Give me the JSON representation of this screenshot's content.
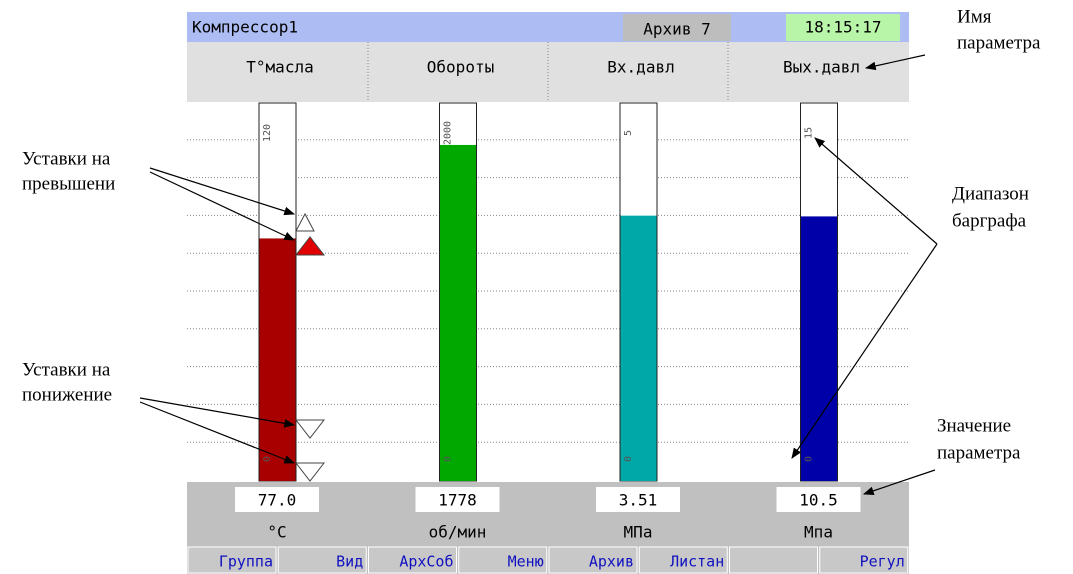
{
  "header": {
    "title": "Компрессор1",
    "archive": "Архив 7",
    "time": "18:15:17"
  },
  "channels": [
    {
      "name": "Т°масла",
      "unit": "°С",
      "value": 77,
      "value_label": "77.0",
      "scale_min": 0,
      "scale_max": 120,
      "color": "#a80000"
    },
    {
      "name": "Обороты",
      "unit": "об/мин",
      "value": 1778,
      "scale_min": 0,
      "scale_max": 2000,
      "color": "#00a800"
    },
    {
      "name": "Вх.давл",
      "unit": "МПа",
      "value": 3.51,
      "scale_min": 0,
      "scale_max": 5,
      "color": "#00a8a8"
    },
    {
      "name": "Вых.давл",
      "unit": "Мпа",
      "value": 10.5,
      "scale_min": 0,
      "scale_max": 15,
      "color": "#0000a8"
    }
  ],
  "buttons": [
    "Группа",
    "Вид",
    "АрхСоб",
    "Меню",
    "Архив",
    "Листан",
    "Регул"
  ],
  "annotations": {
    "param_name": [
      "Имя",
      "параметра"
    ],
    "setpoints_high": [
      "Уставки на",
      "превышени"
    ],
    "setpoints_low": [
      "Уставки на",
      "понижение"
    ],
    "range": [
      "Диапазон",
      "барграфа"
    ],
    "param_value": [
      "Значение",
      "параметра"
    ]
  }
}
